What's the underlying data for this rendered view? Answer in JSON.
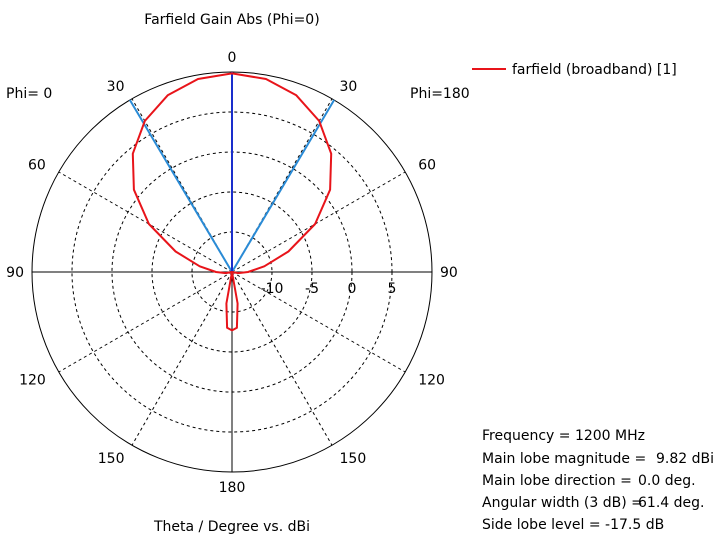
{
  "chart_data": {
    "type": "polar",
    "title": "Farfield Gain Abs (Phi=0)",
    "xlabel": "Theta / Degree vs. dBi",
    "phi_labels": {
      "left": "Phi=  0",
      "right": "Phi=180"
    },
    "angle_ticks": [
      "0",
      "30",
      "60",
      "90",
      "120",
      "150",
      "180",
      "150",
      "120",
      "90",
      "60",
      "30"
    ],
    "radial_ticks": [
      "-10",
      "-5",
      "0",
      "5"
    ],
    "rlim": [
      -15,
      10
    ],
    "grid": true,
    "legend": {
      "position": "top-right",
      "entries": [
        {
          "name": "farfield (broadband) [1]",
          "color": "#e8141a"
        }
      ]
    },
    "series": [
      {
        "name": "farfield (broadband) [1]",
        "color": "#e8141a",
        "theta_deg": [
          0,
          10,
          20,
          30,
          40,
          50,
          60,
          70,
          80,
          90,
          100,
          110,
          120,
          130,
          140,
          150,
          160,
          165,
          170,
          175,
          180
        ],
        "gain_dbi": [
          9.82,
          9.5,
          8.5,
          6.8,
          4.3,
          1.0,
          -3.0,
          -7.5,
          -10.9,
          -13.0,
          -14.2,
          -15,
          -15,
          -15,
          -15,
          -15,
          -15,
          -15,
          -11,
          -8,
          -7.7
        ]
      }
    ],
    "markers": {
      "main_lobe_direction_deg": 0.0,
      "main_lobe_color": "#1a2ecc",
      "beamwidth_edges_deg": [
        -30.7,
        30.7
      ],
      "beamwidth_color": "#2a8bd6",
      "side_lobe_level_db": -17.5,
      "side_lobe_color": "#6b8e23"
    },
    "info": {
      "frequency": "Frequency = 1200 MHz",
      "main_lobe_magnitude_label": "Main lobe magnitude =",
      "main_lobe_magnitude_value": "9.82 dBi",
      "main_lobe_direction_label": "Main lobe direction =",
      "main_lobe_direction_value": "0.0 deg.",
      "angular_width_label": "Angular width (3 dB) =",
      "angular_width_value": "61.4 deg.",
      "side_lobe_level": "Side lobe level =  -17.5 dB"
    }
  }
}
